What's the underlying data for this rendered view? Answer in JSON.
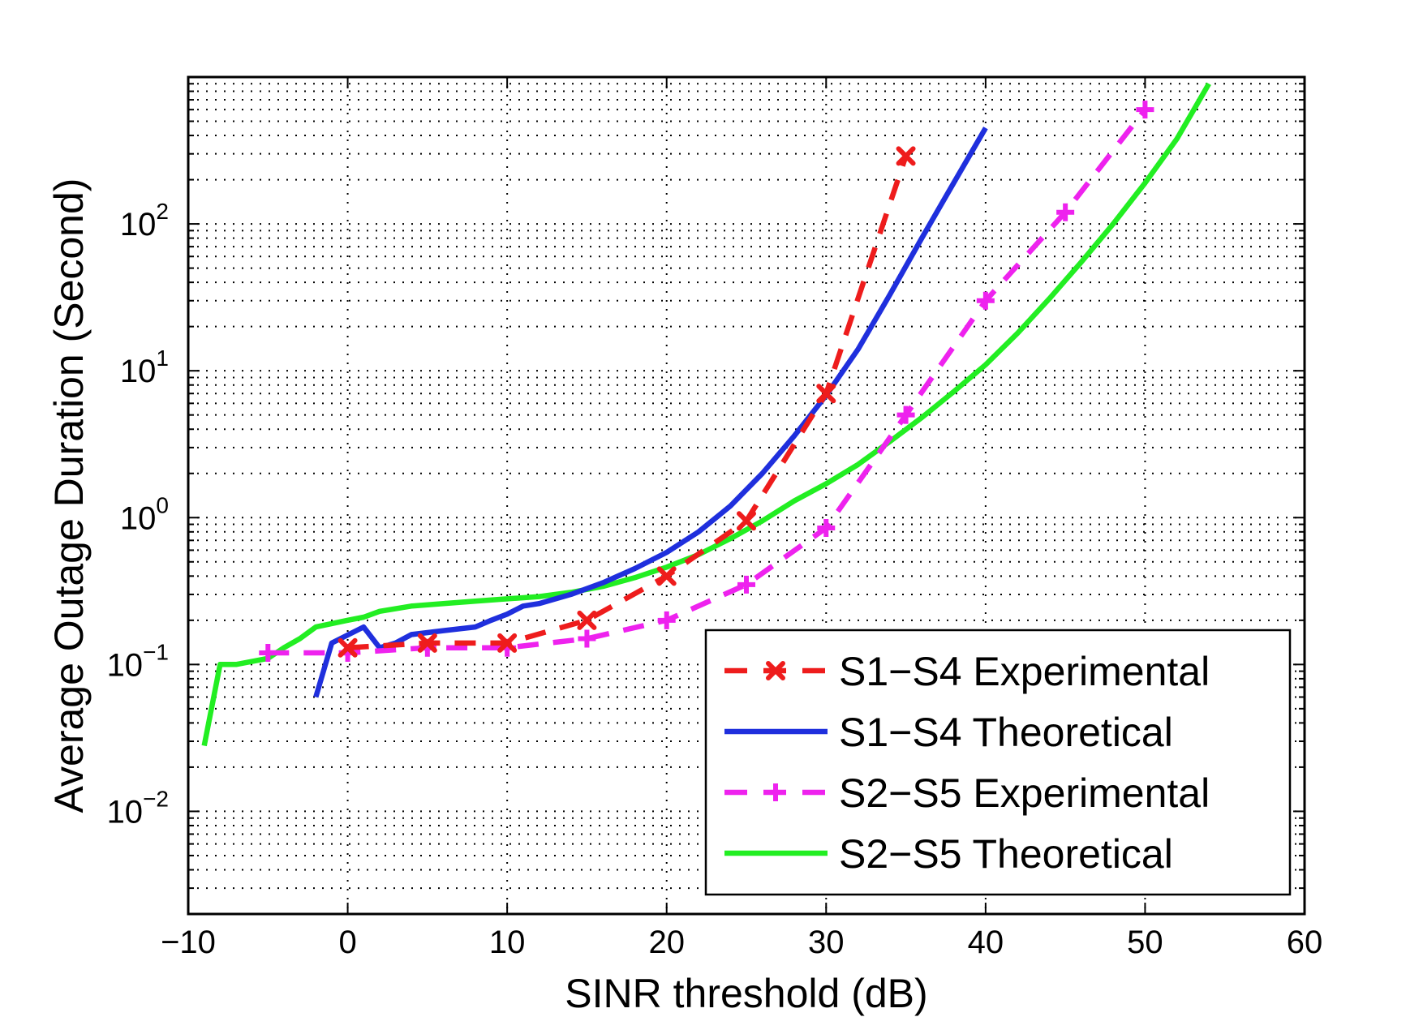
{
  "chart_data": {
    "type": "line",
    "xlabel": "SINR threshold (dB)",
    "ylabel": "Average Outage Duration (Second)",
    "xlim": [
      -10,
      60
    ],
    "ylim": [
      0.002,
      1000
    ],
    "yscale": "log",
    "grid": true,
    "legend_position": "bottom-right",
    "xticks": [
      -10,
      0,
      10,
      20,
      30,
      40,
      50,
      60
    ],
    "xtick_labels": [
      "−10",
      "0",
      "10",
      "20",
      "30",
      "40",
      "50",
      "60"
    ],
    "ytick_exponents": [
      -2,
      -1,
      0,
      1,
      2
    ],
    "series": [
      {
        "name": "S1−S4 Experimental",
        "color": "#ee1c1c",
        "style": "dashed",
        "marker": "x",
        "x": [
          0,
          5,
          10,
          15,
          20,
          25,
          30,
          35
        ],
        "y": [
          0.13,
          0.14,
          0.14,
          0.2,
          0.4,
          0.95,
          7,
          290
        ]
      },
      {
        "name": "S1−S4 Theoretical",
        "color": "#1f2fdd",
        "style": "solid",
        "marker": "none",
        "x": [
          -2,
          -1,
          1,
          2,
          3,
          4,
          6,
          8,
          9,
          10,
          11,
          12,
          14,
          16,
          18,
          20,
          22,
          24,
          26,
          28,
          30,
          32,
          34,
          36,
          38,
          40
        ],
        "y": [
          0.06,
          0.14,
          0.18,
          0.13,
          0.14,
          0.16,
          0.17,
          0.18,
          0.2,
          0.22,
          0.25,
          0.26,
          0.3,
          0.36,
          0.45,
          0.58,
          0.8,
          1.2,
          2.0,
          3.6,
          6.8,
          14,
          33,
          80,
          190,
          450
        ]
      },
      {
        "name": "S2−S5 Experimental",
        "color": "#ee22ee",
        "style": "dashed",
        "marker": "+",
        "x": [
          -5,
          0,
          5,
          10,
          15,
          20,
          25,
          30,
          35,
          40,
          45,
          50
        ],
        "y": [
          0.12,
          0.12,
          0.13,
          0.13,
          0.15,
          0.2,
          0.35,
          0.85,
          5,
          30,
          120,
          600
        ]
      },
      {
        "name": "S2−S5 Theoretical",
        "color": "#22ee22",
        "style": "solid",
        "marker": "none",
        "x": [
          -9,
          -8,
          -7,
          -5,
          -4,
          -3,
          -2,
          -1,
          0,
          1,
          2,
          4,
          6,
          8,
          10,
          12,
          14,
          16,
          18,
          20,
          22,
          24,
          26,
          28,
          30,
          32,
          34,
          36,
          38,
          40,
          42,
          44,
          46,
          48,
          50,
          52,
          54
        ],
        "y": [
          0.028,
          0.1,
          0.1,
          0.11,
          0.13,
          0.15,
          0.18,
          0.19,
          0.2,
          0.21,
          0.23,
          0.25,
          0.26,
          0.27,
          0.28,
          0.29,
          0.31,
          0.34,
          0.39,
          0.46,
          0.56,
          0.72,
          0.95,
          1.3,
          1.7,
          2.3,
          3.3,
          4.8,
          7.2,
          11,
          18,
          31,
          55,
          100,
          190,
          380,
          900
        ]
      }
    ]
  }
}
